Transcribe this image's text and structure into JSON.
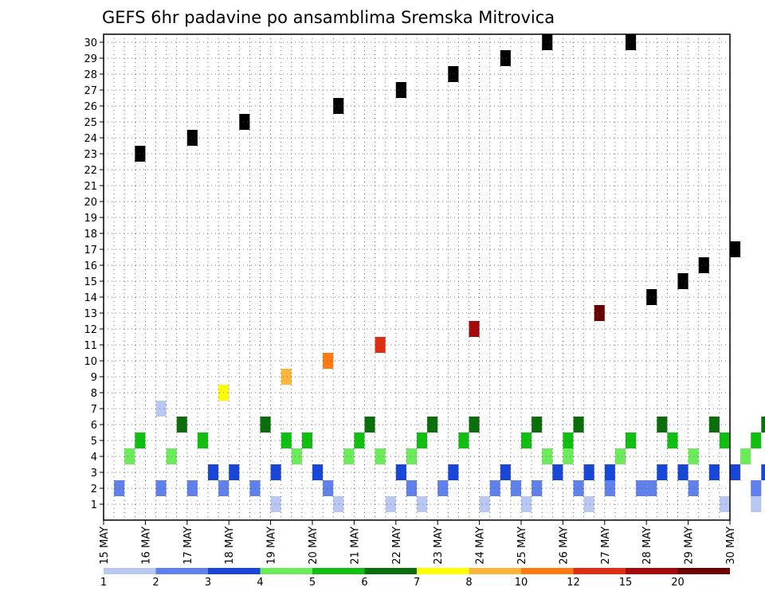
{
  "chart_data": {
    "type": "heatmap",
    "title": "GEFS 6hr padavine po ansamblima Sremska Mitrovica",
    "x_range": [
      "15 MAY",
      "30 MAY"
    ],
    "x_ticks": [
      "15 MAY",
      "16 MAY",
      "17 MAY",
      "18 MAY",
      "19 MAY",
      "20 MAY",
      "21 MAY",
      "22 MAY",
      "23 MAY",
      "24 MAY",
      "25 MAY",
      "26 MAY",
      "27 MAY",
      "28 MAY",
      "29 MAY",
      "30 MAY"
    ],
    "y_ticks": [
      1,
      2,
      3,
      4,
      5,
      6,
      7,
      8,
      9,
      10,
      11,
      12,
      13,
      14,
      15,
      16,
      17,
      18,
      19,
      20,
      21,
      22,
      23,
      24,
      25,
      26,
      27,
      28,
      29,
      30
    ],
    "grid": true,
    "legend": {
      "placement": "bottom",
      "labels": [
        "1",
        "2",
        "3",
        "4",
        "5",
        "6",
        "7",
        "8",
        "10",
        "12",
        "15",
        "20"
      ],
      "colors": [
        "#b8c8f2",
        "#6080ec",
        "#1846d8",
        "#6cec5a",
        "#10c010",
        "#0a6f0a",
        "#ffff00",
        "#ffb43c",
        "#ff7a10",
        "#e02c10",
        "#a40a0a",
        "#6a0000"
      ]
    },
    "steps_per_day": 4,
    "cells": [
      [
        16,
        1,
        1
      ],
      [
        22,
        1,
        1
      ],
      [
        27,
        1,
        1
      ],
      [
        30,
        1,
        1
      ],
      [
        36,
        1,
        1
      ],
      [
        40,
        1,
        1
      ],
      [
        46,
        1,
        1
      ],
      [
        59,
        1,
        1
      ],
      [
        62,
        1,
        1
      ],
      [
        66,
        1,
        1
      ],
      [
        66,
        1,
        1
      ],
      [
        1,
        2,
        2
      ],
      [
        5,
        2,
        2
      ],
      [
        8,
        2,
        2
      ],
      [
        11,
        2,
        2
      ],
      [
        14,
        2,
        2
      ],
      [
        21,
        2,
        2
      ],
      [
        29,
        2,
        2
      ],
      [
        32,
        2,
        2
      ],
      [
        37,
        2,
        2
      ],
      [
        39,
        2,
        2
      ],
      [
        41,
        2,
        2
      ],
      [
        45,
        2,
        2
      ],
      [
        48,
        2,
        2
      ],
      [
        51,
        2,
        2
      ],
      [
        52,
        2,
        2
      ],
      [
        56,
        2,
        2
      ],
      [
        62,
        2,
        2
      ],
      [
        64,
        2,
        2
      ],
      [
        65,
        2,
        2
      ],
      [
        67,
        2,
        2
      ],
      [
        69,
        2,
        2
      ],
      [
        10,
        3,
        3
      ],
      [
        12,
        3,
        3
      ],
      [
        16,
        3,
        3
      ],
      [
        20,
        3,
        3
      ],
      [
        28,
        3,
        3
      ],
      [
        33,
        3,
        3
      ],
      [
        38,
        3,
        3
      ],
      [
        43,
        3,
        3
      ],
      [
        46,
        3,
        3
      ],
      [
        48,
        3,
        3
      ],
      [
        53,
        3,
        3
      ],
      [
        55,
        3,
        3
      ],
      [
        58,
        3,
        3
      ],
      [
        60,
        3,
        3
      ],
      [
        63,
        3,
        3
      ],
      [
        68,
        3,
        3
      ],
      [
        2,
        4,
        4
      ],
      [
        6,
        4,
        4
      ],
      [
        18,
        4,
        4
      ],
      [
        23,
        4,
        4
      ],
      [
        26,
        4,
        4
      ],
      [
        29,
        4,
        4
      ],
      [
        42,
        4,
        4
      ],
      [
        44,
        4,
        4
      ],
      [
        49,
        4,
        4
      ],
      [
        56,
        4,
        4
      ],
      [
        61,
        4,
        4
      ],
      [
        3,
        5,
        5
      ],
      [
        9,
        5,
        5
      ],
      [
        17,
        5,
        5
      ],
      [
        19,
        5,
        5
      ],
      [
        24,
        5,
        5
      ],
      [
        30,
        5,
        5
      ],
      [
        34,
        5,
        5
      ],
      [
        40,
        5,
        5
      ],
      [
        44,
        5,
        5
      ],
      [
        50,
        5,
        5
      ],
      [
        54,
        5,
        5
      ],
      [
        59,
        5,
        5
      ],
      [
        62,
        5,
        5
      ],
      [
        7,
        6,
        6
      ],
      [
        15,
        6,
        6
      ],
      [
        25,
        6,
        6
      ],
      [
        31,
        6,
        6
      ],
      [
        35,
        6,
        6
      ],
      [
        41,
        6,
        6
      ],
      [
        45,
        6,
        6
      ],
      [
        53,
        6,
        6
      ],
      [
        58,
        6,
        6
      ],
      [
        63,
        6,
        6
      ],
      [
        5,
        1,
        7
      ],
      [
        11,
        7,
        8
      ],
      [
        17,
        8,
        9
      ],
      [
        21,
        9,
        10
      ],
      [
        26,
        10,
        11
      ],
      [
        35,
        11,
        12
      ],
      [
        47,
        12,
        13
      ],
      [
        52,
        13,
        14
      ],
      [
        55,
        14,
        15
      ],
      [
        57,
        15,
        16
      ],
      [
        60,
        16,
        17
      ],
      [
        64,
        17,
        18
      ],
      [
        68,
        18,
        19
      ],
      [
        69,
        19,
        20
      ],
      [
        70,
        20,
        21
      ],
      [
        71,
        21,
        22
      ],
      [
        3,
        22,
        23
      ],
      [
        8,
        23,
        24
      ],
      [
        13,
        24,
        25
      ],
      [
        22,
        25,
        26
      ],
      [
        28,
        26,
        27
      ],
      [
        33,
        27,
        28
      ],
      [
        38,
        28,
        29
      ],
      [
        42,
        29,
        30
      ],
      [
        50,
        30,
        30
      ]
    ]
  }
}
